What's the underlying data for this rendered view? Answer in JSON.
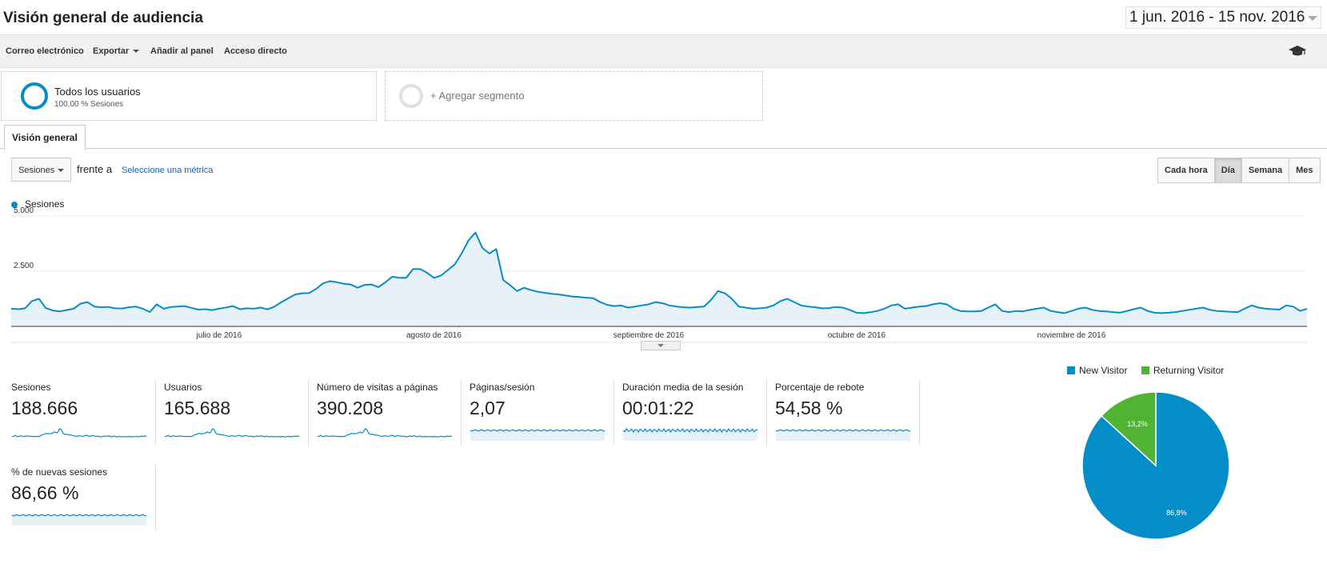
{
  "header": {
    "title": "Visión general de audiencia",
    "date_range": "1 jun. 2016 - 15 nov. 2016"
  },
  "toolbar": {
    "email": "Correo electrónico",
    "export": "Exportar",
    "add_dashboard": "Añadir al panel",
    "shortcut": "Acceso directo",
    "academy_icon": "graduation-cap-icon"
  },
  "segments": {
    "all_users": {
      "title": "Todos los usuarios",
      "subtitle": "100,00 % Sesiones"
    },
    "add_segment": "+ Agregar segmento"
  },
  "tabs": {
    "overview": "Visión general"
  },
  "controls": {
    "metric": "Sesiones",
    "versus": "frente a",
    "select_metric": "Seleccione una métrica",
    "granularity": [
      "Cada hora",
      "Día",
      "Semana",
      "Mes"
    ],
    "granularity_active": "Día"
  },
  "chart_data": [
    {
      "type": "area",
      "series": [
        {
          "name": "Sesiones",
          "color": "#058dc7",
          "values": [
            800,
            780,
            820,
            1150,
            1250,
            830,
            720,
            680,
            740,
            800,
            1030,
            1100,
            900,
            870,
            880,
            820,
            810,
            870,
            900,
            800,
            650,
            1000,
            800,
            880,
            900,
            920,
            840,
            760,
            780,
            740,
            800,
            860,
            920,
            780,
            820,
            800,
            850,
            770,
            900,
            1100,
            1280,
            1450,
            1500,
            1510,
            1700,
            1950,
            2050,
            2000,
            1930,
            1900,
            1750,
            1880,
            1900,
            1780,
            2000,
            2250,
            2200,
            2200,
            2600,
            2600,
            2430,
            2200,
            2300,
            2550,
            2800,
            3300,
            3900,
            4250,
            3550,
            3300,
            3500,
            2100,
            1870,
            1600,
            1750,
            1650,
            1570,
            1520,
            1480,
            1450,
            1400,
            1350,
            1330,
            1300,
            1280,
            1100,
            980,
            920,
            950,
            850,
            900,
            950,
            1000,
            1100,
            1050,
            950,
            900,
            870,
            850,
            880,
            900,
            1200,
            1600,
            1500,
            1250,
            900,
            850,
            800,
            820,
            850,
            950,
            1150,
            1250,
            1100,
            950,
            900,
            870,
            820,
            830,
            880,
            850,
            750,
            620,
            600,
            640,
            700,
            800,
            950,
            1000,
            800,
            850,
            900,
            920,
            1000,
            1050,
            1000,
            800,
            700,
            680,
            680,
            700,
            850,
            1000,
            700,
            650,
            700,
            680,
            750,
            800,
            850,
            700,
            650,
            600,
            700,
            800,
            850,
            750,
            700,
            680,
            650,
            620,
            700,
            780,
            850,
            700,
            620,
            600,
            620,
            650,
            700,
            750,
            800,
            850,
            750,
            700,
            680,
            660,
            650,
            800,
            950,
            850,
            800,
            780,
            760,
            950,
            900,
            700,
            800
          ]
        }
      ],
      "x_labels": [
        "julio de 2016",
        "agosto de 2016",
        "septiembre de 2016",
        "octubre de 2016",
        "noviembre de 2016"
      ],
      "y_ticks": [
        "5.000",
        "2.500"
      ],
      "ylim": [
        0,
        5000
      ]
    },
    {
      "type": "pie",
      "categories": [
        "New Visitor",
        "Returning Visitor"
      ],
      "values": [
        86.8,
        13.2
      ],
      "labels": [
        "86,8%",
        "13,2%"
      ],
      "colors": [
        "#058dc7",
        "#50b432"
      ]
    }
  ],
  "metrics": [
    {
      "label": "Sesiones",
      "value": "188.666"
    },
    {
      "label": "Usuarios",
      "value": "165.688"
    },
    {
      "label": "Número de visitas a páginas",
      "value": "390.208"
    },
    {
      "label": "Páginas/sesión",
      "value": "2,07"
    },
    {
      "label": "Duración media de la sesión",
      "value": "00:01:22"
    },
    {
      "label": "Porcentaje de rebote",
      "value": "54,58 %"
    },
    {
      "label": "% de nuevas sesiones",
      "value": "86,66 %"
    }
  ],
  "pie_legend": {
    "new": "New Visitor",
    "returning": "Returning Visitor"
  }
}
